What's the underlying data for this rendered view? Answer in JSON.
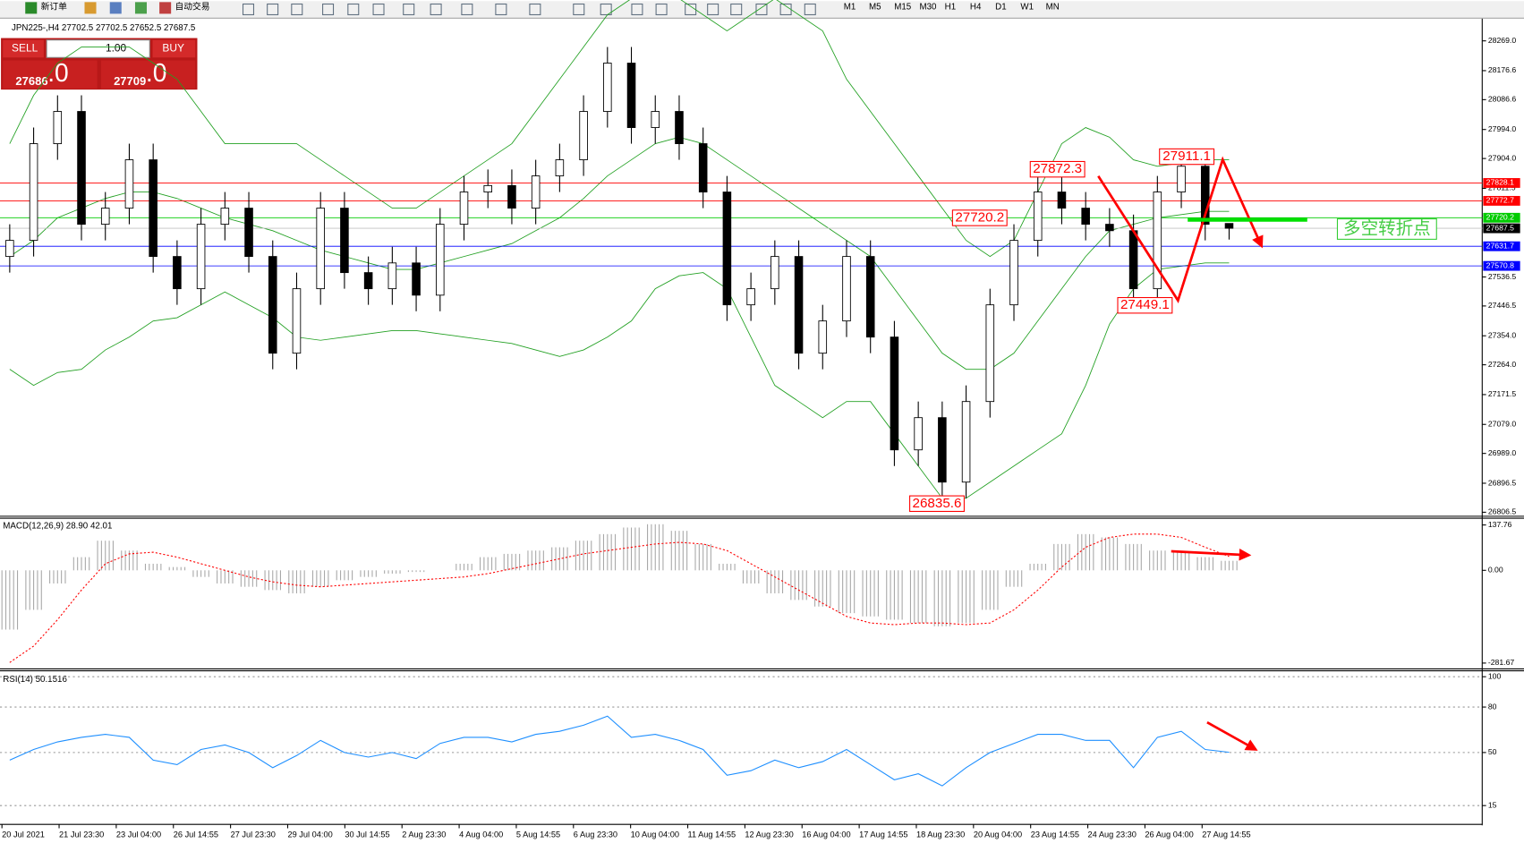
{
  "toolbar": {
    "new_order": "新订单",
    "auto_trade": "自动交易",
    "timeframes": [
      "M1",
      "M5",
      "M15",
      "M30",
      "H1",
      "H4",
      "D1",
      "W1",
      "MN"
    ]
  },
  "trade_panel": {
    "sell": "SELL",
    "lot": "1.00",
    "buy": "BUY",
    "sell_price": "27686",
    "sell_pip": ".0",
    "buy_price": "27709",
    "buy_pip": ".0"
  },
  "chart_data": [
    {
      "type": "candlestick",
      "title": "JPN225-,H4 27702.5 27702.5 27652.5 27687.5",
      "up_color": "#ffffff",
      "down_color": "#000000",
      "open": [
        27600,
        27650,
        27950,
        28050,
        27700,
        27750,
        27900,
        27600,
        27500,
        27700,
        27750,
        27600,
        27300,
        27500,
        27750,
        27550,
        27500,
        27580,
        27480,
        27700,
        27800,
        27820,
        27750,
        27850,
        27900,
        28050,
        28200,
        28000,
        28050,
        27950,
        27800,
        27450,
        27500,
        27600,
        27300,
        27400,
        27600,
        27350,
        27000,
        27100,
        26900,
        27150,
        27450,
        27650,
        27800,
        27750,
        27700,
        27680,
        27500,
        27800,
        27880,
        27702.5
      ],
      "high": [
        27700,
        28000,
        28100,
        28100,
        27800,
        27950,
        27950,
        27650,
        27750,
        27800,
        27800,
        27650,
        27550,
        27800,
        27800,
        27600,
        27630,
        27630,
        27750,
        27850,
        27870,
        27870,
        27900,
        27950,
        28100,
        28250,
        28250,
        28100,
        28100,
        28000,
        27850,
        27550,
        27650,
        27650,
        27450,
        27650,
        27650,
        27400,
        27150,
        27150,
        27200,
        27500,
        27700,
        27872.3,
        27850,
        27800,
        27750,
        27730,
        27850,
        27911.1,
        27900,
        27702.5
      ],
      "low": [
        27550,
        27600,
        27900,
        27650,
        27650,
        27700,
        27550,
        27450,
        27450,
        27650,
        27550,
        27250,
        27250,
        27450,
        27500,
        27450,
        27450,
        27430,
        27430,
        27650,
        27750,
        27700,
        27700,
        27800,
        27850,
        28000,
        27950,
        27950,
        27900,
        27750,
        27400,
        27400,
        27450,
        27250,
        27250,
        27350,
        27300,
        26950,
        26950,
        26835.6,
        26850,
        27100,
        27400,
        27600,
        27700,
        27650,
        27630,
        27449.1,
        27450,
        27750,
        27650,
        27652.5
      ],
      "close": [
        27650,
        27950,
        28050,
        27700,
        27750,
        27900,
        27600,
        27500,
        27700,
        27750,
        27600,
        27300,
        27500,
        27750,
        27550,
        27500,
        27580,
        27480,
        27700,
        27800,
        27820,
        27750,
        27850,
        27900,
        28050,
        28200,
        28000,
        28050,
        27950,
        27800,
        27450,
        27500,
        27600,
        27300,
        27400,
        27600,
        27350,
        27000,
        27100,
        26900,
        27150,
        27450,
        27650,
        27800,
        27750,
        27700,
        27680,
        27500,
        27800,
        27880,
        27700,
        27687.5
      ],
      "bands": {
        "color": "#22a022",
        "upper": [
          27950,
          28100,
          28200,
          28250,
          28250,
          28250,
          28200,
          28150,
          28050,
          27950,
          27950,
          27950,
          27950,
          27900,
          27850,
          27800,
          27750,
          27750,
          27800,
          27850,
          27900,
          27950,
          28050,
          28150,
          28250,
          28350,
          28400,
          28400,
          28400,
          28350,
          28300,
          28350,
          28400,
          28350,
          28300,
          28150,
          28050,
          27950,
          27850,
          27750,
          27650,
          27600,
          27650,
          27800,
          27950,
          28000,
          27970,
          27900,
          27880,
          27890,
          27900,
          27900
        ],
        "middle": [
          27600,
          27650,
          27720,
          27750,
          27780,
          27800,
          27800,
          27780,
          27750,
          27720,
          27700,
          27680,
          27650,
          27620,
          27600,
          27580,
          27560,
          27560,
          27580,
          27600,
          27620,
          27640,
          27680,
          27720,
          27780,
          27850,
          27900,
          27950,
          27970,
          27950,
          27900,
          27850,
          27800,
          27750,
          27700,
          27650,
          27600,
          27500,
          27400,
          27300,
          27250,
          27250,
          27300,
          27400,
          27500,
          27600,
          27680,
          27700,
          27720,
          27730,
          27740,
          27740
        ],
        "lower": [
          27250,
          27200,
          27240,
          27250,
          27310,
          27350,
          27400,
          27410,
          27450,
          27490,
          27450,
          27410,
          27350,
          27340,
          27350,
          27360,
          27370,
          27370,
          27360,
          27350,
          27340,
          27330,
          27310,
          27290,
          27310,
          27350,
          27400,
          27500,
          27540,
          27550,
          27500,
          27350,
          27200,
          27150,
          27100,
          27150,
          27150,
          27050,
          26950,
          26850,
          26850,
          26900,
          26950,
          27000,
          27050,
          27200,
          27390,
          27500,
          27560,
          27570,
          27580,
          27580
        ]
      },
      "ylim": [
        26794,
        28338
      ],
      "yticks": [
        {
          "value": 28269,
          "label": "28269.0"
        },
        28176.6,
        28086.6,
        {
          "value": 27994,
          "label": "27994.0"
        },
        {
          "value": 27904,
          "label": "27904.0"
        },
        27811.5,
        27536.5,
        27446.5,
        {
          "value": 27354,
          "label": "27354.0"
        },
        {
          "value": 27264,
          "label": "27264.0"
        },
        27171.5,
        {
          "value": 27079,
          "label": "27079.0"
        },
        {
          "value": 26989,
          "label": "26989.0"
        },
        26896.5,
        26806.5
      ],
      "levels": [
        {
          "value": 27828.1,
          "color": "#ff0000"
        },
        {
          "value": 27772.7,
          "color": "#ff0000"
        },
        {
          "value": 27720.2,
          "color": "#00cc00"
        },
        {
          "value": 27687.5,
          "color": "#000000"
        },
        {
          "value": 27631.7,
          "color": "#0000ff"
        },
        {
          "value": 27570.8,
          "color": "#0000ff"
        }
      ],
      "annotations": [
        27872.3,
        27911.1,
        27720.2,
        27449.1,
        26835.6
      ],
      "note": "多空转折点",
      "x_labels": [
        "20 Jul 2021",
        "21 Jul 23:30",
        "23 Jul 04:00",
        "26 Jul 14:55",
        "27 Jul 23:30",
        "29 Jul 04:00",
        "30 Jul 14:55",
        "2 Aug 23:30",
        "4 Aug 04:00",
        "5 Aug 14:55",
        "6 Aug 23:30",
        "10 Aug 04:00",
        "11 Aug 14:55",
        "12 Aug 23:30",
        "16 Aug 04:00",
        "17 Aug 14:55",
        "18 Aug 23:30",
        "20 Aug 04:00",
        "23 Aug 14:55",
        "24 Aug 23:30",
        "26 Aug 04:00",
        "27 Aug 14:55"
      ]
    },
    {
      "type": "macd",
      "title": "MACD(12,26,9) 28.90 42.01",
      "histogram_color": "#a8a8a8",
      "signal_color": "#ff0000",
      "histogram": [
        -180,
        -120,
        -40,
        40,
        90,
        60,
        20,
        10,
        -20,
        -40,
        -50,
        -60,
        -70,
        -50,
        -30,
        -20,
        -10,
        -5,
        0,
        20,
        40,
        50,
        60,
        70,
        90,
        110,
        130,
        140,
        120,
        80,
        20,
        -40,
        -70,
        -90,
        -110,
        -130,
        -140,
        -150,
        -160,
        -170,
        -160,
        -120,
        -50,
        20,
        80,
        110,
        100,
        80,
        60,
        55,
        40,
        28.9
      ],
      "signal": [
        -280,
        -230,
        -150,
        -60,
        20,
        50,
        55,
        40,
        20,
        0,
        -20,
        -35,
        -45,
        -50,
        -45,
        -40,
        -35,
        -30,
        -25,
        -20,
        -10,
        5,
        20,
        35,
        50,
        60,
        70,
        80,
        85,
        80,
        60,
        20,
        -20,
        -60,
        -100,
        -140,
        -160,
        -165,
        -160,
        -160,
        -165,
        -160,
        -120,
        -60,
        10,
        70,
        100,
        110,
        110,
        100,
        70,
        42.01
      ],
      "ylim": [
        -299.3,
        158.3
      ],
      "yticks": [
        137.76,
        {
          "value": 0,
          "label": "0.00"
        },
        -281.67
      ]
    },
    {
      "type": "line",
      "title": "RSI(14) 50.1516",
      "color": "#1e8fff",
      "values": [
        45,
        52,
        57,
        60,
        62,
        60,
        45,
        42,
        52,
        55,
        50,
        40,
        48,
        58,
        50,
        47,
        50,
        46,
        56,
        60,
        60,
        57,
        62,
        64,
        68,
        74,
        60,
        62,
        58,
        52,
        35,
        38,
        45,
        40,
        44,
        52,
        42,
        32,
        36,
        28,
        40,
        50,
        56,
        62,
        62,
        58,
        58,
        40,
        60,
        64,
        52,
        50.1516
      ],
      "ylim": [
        2.6,
        103.9
      ],
      "yticks": [
        100,
        80,
        50,
        15
      ]
    }
  ]
}
